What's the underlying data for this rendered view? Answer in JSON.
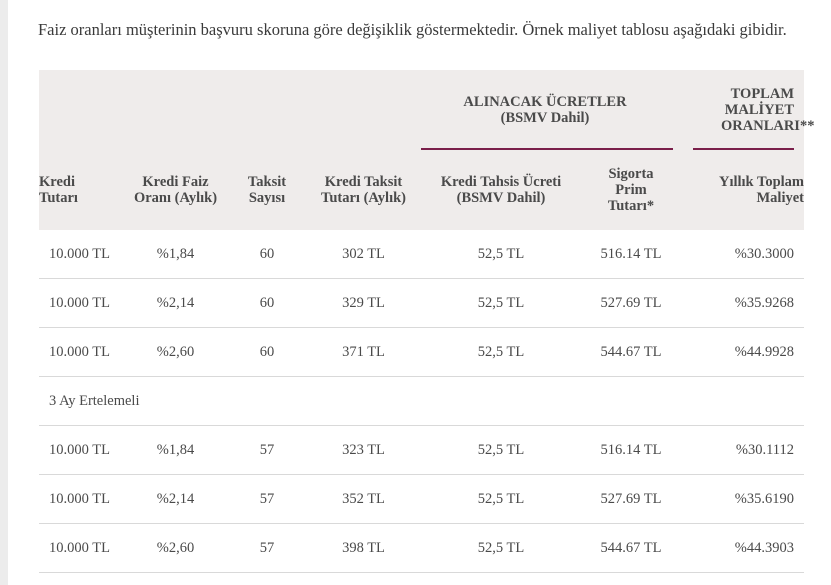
{
  "intro_text": "Faiz oranları müşterinin başvuru skoruna göre değişiklik göstermektedir. Örnek maliyet tablosu aşağıdaki gibidir.",
  "table": {
    "group_headers": {
      "fees": "ALINACAK ÜCRETLER (BSMV Dahil)",
      "total": "TOPLAM MALİYET ORANLARI**"
    },
    "columns": {
      "amount": "Kredi Tutarı",
      "rate": "Kredi Faiz Oranı (Aylık)",
      "term": "Taksit Sayısı",
      "installment": "Kredi Taksit Tutarı (Aylık)",
      "allocation_fee": "Kredi Tahsis Ücreti (BSMV Dahil)",
      "insurance": "Sigorta Prim Tutarı*",
      "annual_cost": "Yıllık Toplam Maliyet"
    },
    "rows_a": [
      {
        "amount": "10.000 TL",
        "rate": "%1,84",
        "term": "60",
        "installment": "302 TL",
        "fee": "52,5 TL",
        "insurance": "516.14 TL",
        "cost": "%30.3000"
      },
      {
        "amount": "10.000 TL",
        "rate": "%2,14",
        "term": "60",
        "installment": "329 TL",
        "fee": "52,5 TL",
        "insurance": "527.69 TL",
        "cost": "%35.9268"
      },
      {
        "amount": "10.000 TL",
        "rate": "%2,60",
        "term": "60",
        "installment": "371 TL",
        "fee": "52,5 TL",
        "insurance": "544.67 TL",
        "cost": "%44.9928"
      }
    ],
    "section_label": "3 Ay Ertelemeli",
    "rows_b": [
      {
        "amount": "10.000 TL",
        "rate": "%1,84",
        "term": "57",
        "installment": "323 TL",
        "fee": "52,5 TL",
        "insurance": "516.14 TL",
        "cost": "%30.1112"
      },
      {
        "amount": "10.000 TL",
        "rate": "%2,14",
        "term": "57",
        "installment": "352 TL",
        "fee": "52,5 TL",
        "insurance": "527.69 TL",
        "cost": "%35.6190"
      },
      {
        "amount": "10.000 TL",
        "rate": "%2,60",
        "term": "57",
        "installment": "398 TL",
        "fee": "52,5 TL",
        "insurance": "544.67 TL",
        "cost": "%44.3903"
      }
    ]
  },
  "colors": {
    "accent_line": "#7a1f4a",
    "header_bg": "#efeceb"
  }
}
